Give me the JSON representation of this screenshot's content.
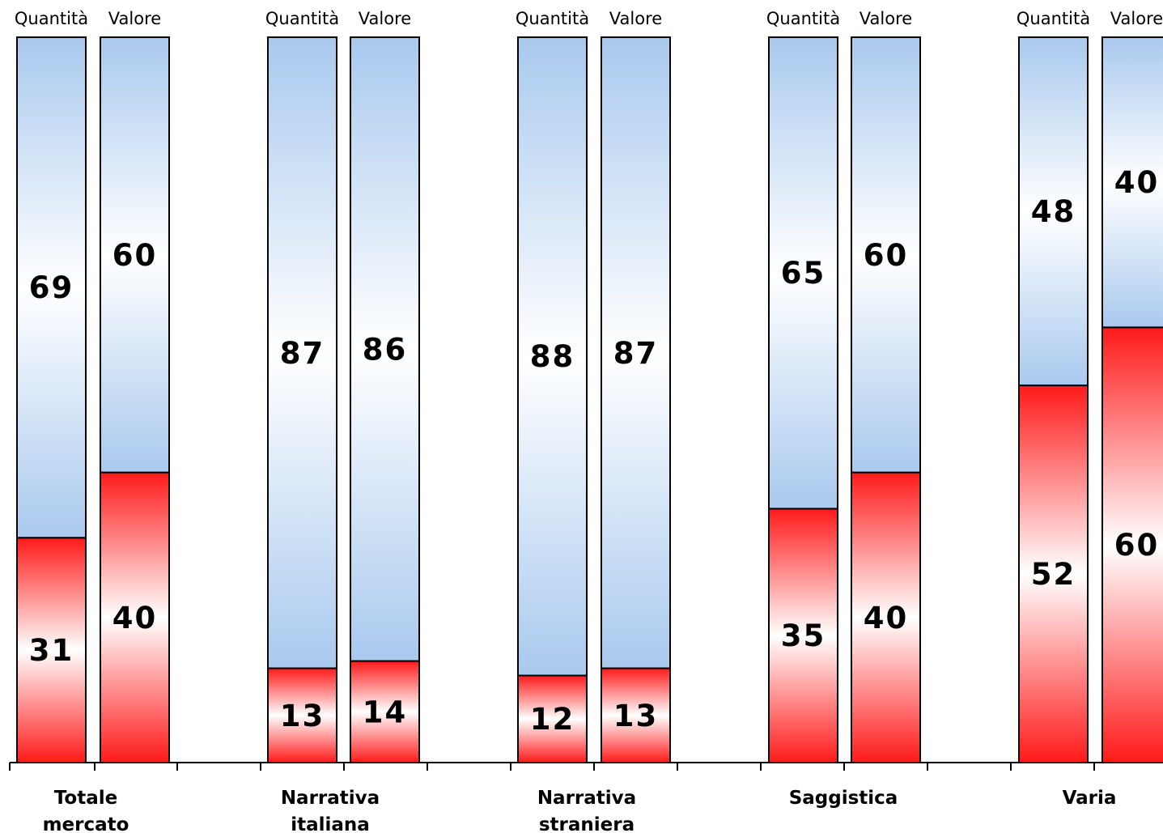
{
  "chart_data": {
    "type": "bar",
    "stacked": true,
    "orientation": "vertical",
    "bar_labels": [
      "Quantità",
      "Valore"
    ],
    "categories": [
      {
        "lines": [
          "Totale",
          "mercato"
        ]
      },
      {
        "lines": [
          "Narrativa",
          "italiana"
        ]
      },
      {
        "lines": [
          "Narrativa",
          "straniera"
        ]
      },
      {
        "lines": [
          "Saggistica"
        ]
      },
      {
        "lines": [
          "Varia"
        ]
      }
    ],
    "series": [
      {
        "color": "#ff1a1a",
        "values": [
          [
            31,
            40
          ],
          [
            13,
            14
          ],
          [
            12,
            13
          ],
          [
            35,
            40
          ],
          [
            52,
            60
          ]
        ]
      },
      {
        "color": "#a9c9ee",
        "values": [
          [
            69,
            60
          ],
          [
            87,
            86
          ],
          [
            88,
            87
          ],
          [
            65,
            60
          ],
          [
            48,
            40
          ]
        ]
      }
    ],
    "ylim": [
      0,
      100
    ],
    "grid": false,
    "legend": "none"
  }
}
